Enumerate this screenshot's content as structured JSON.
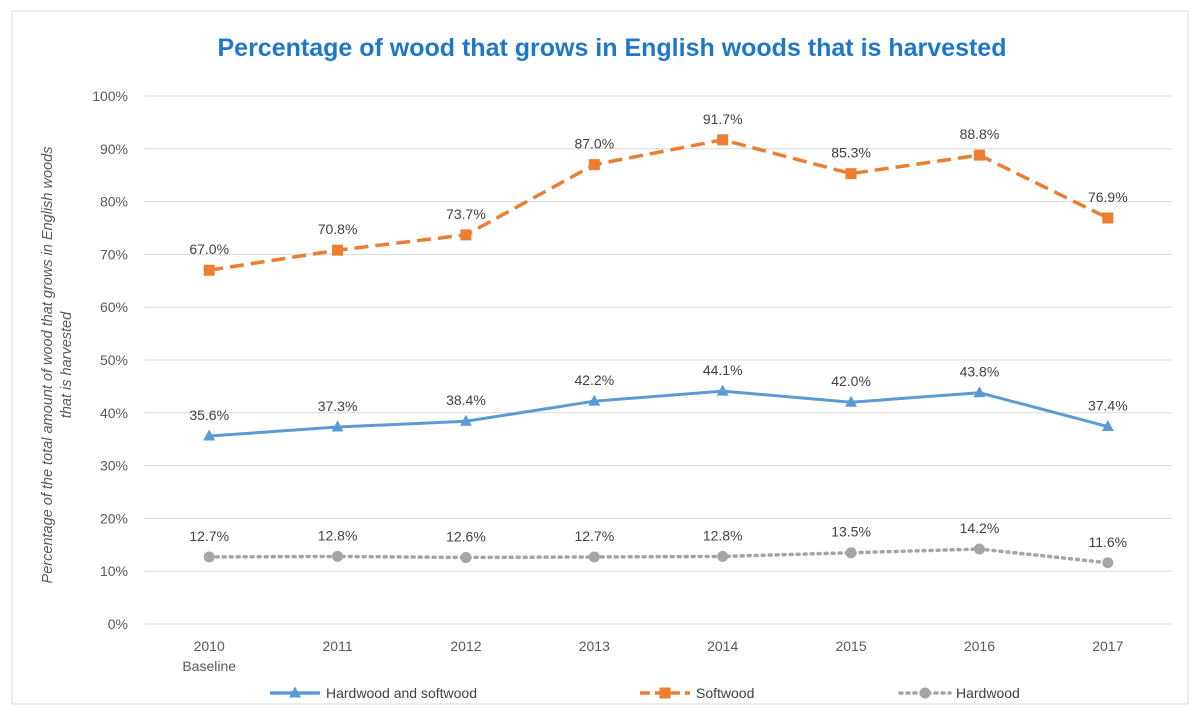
{
  "chart_data": {
    "type": "line",
    "title": "Percentage of wood that grows in English woods that is harvested",
    "ylabel_lines": [
      "Percentage of the total amount of wood that grows in English woods",
      "that is harvested"
    ],
    "xlabel": "",
    "categories": [
      "2010",
      "2011",
      "2012",
      "2013",
      "2014",
      "2015",
      "2016",
      "2017"
    ],
    "category_sublabels": [
      "Baseline",
      "",
      "",
      "",
      "",
      "",
      "",
      ""
    ],
    "ylim": [
      0,
      100
    ],
    "yticks": [
      "0%",
      "10%",
      "20%",
      "30%",
      "40%",
      "50%",
      "60%",
      "70%",
      "80%",
      "90%",
      "100%"
    ],
    "grid": true,
    "legend_position": "bottom",
    "series": [
      {
        "name": "Hardwood and softwood",
        "values": [
          35.6,
          37.3,
          38.4,
          42.2,
          44.1,
          42.0,
          43.8,
          37.4
        ],
        "labels": [
          "35.6%",
          "37.3%",
          "38.4%",
          "42.2%",
          "44.1%",
          "42.0%",
          "43.8%",
          "37.4%"
        ],
        "color": "#5b9bd5",
        "line_style": "solid",
        "marker": "triangle"
      },
      {
        "name": "Softwood",
        "values": [
          67.0,
          70.8,
          73.7,
          87.0,
          91.7,
          85.3,
          88.8,
          76.9
        ],
        "labels": [
          "67.0%",
          "70.8%",
          "73.7%",
          "87.0%",
          "91.7%",
          "85.3%",
          "88.8%",
          "76.9%"
        ],
        "color": "#ed7d31",
        "line_style": "dashed",
        "marker": "square"
      },
      {
        "name": "Hardwood",
        "values": [
          12.7,
          12.8,
          12.6,
          12.7,
          12.8,
          13.5,
          14.2,
          11.6
        ],
        "labels": [
          "12.7%",
          "12.8%",
          "12.6%",
          "12.7%",
          "12.8%",
          "13.5%",
          "14.2%",
          "11.6%"
        ],
        "color": "#a5a5a5",
        "line_style": "dotted",
        "marker": "circle"
      }
    ]
  }
}
